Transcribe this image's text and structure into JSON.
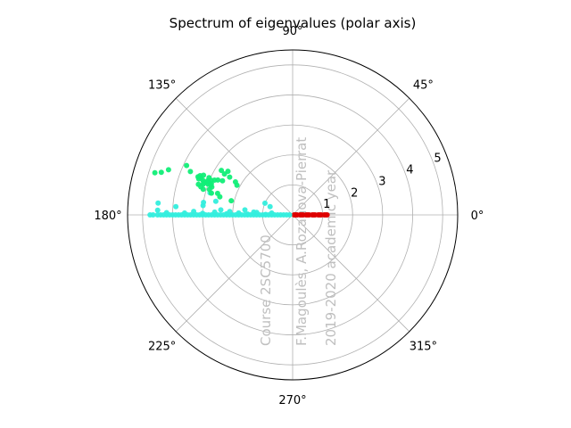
{
  "chart_data": {
    "type": "scatter",
    "projection": "polar",
    "title": "Spectrum of eigenvalues (polar axis)",
    "theta_ticks": [
      "0°",
      "45°",
      "90°",
      "135°",
      "180°",
      "225°",
      "270°",
      "315°"
    ],
    "r_ticks": [
      "1",
      "2",
      "3",
      "4",
      "5"
    ],
    "rlim": [
      0,
      5.5
    ],
    "grid": true,
    "watermark": [
      "Course 2SC5700",
      "F.Magoulès, A.Rozanova-Pierrat",
      "2019-2020 academic year"
    ],
    "series": [
      {
        "color": "#dd0000",
        "marker": "dot",
        "points_theta_deg_r": [
          [
            0,
            0.05
          ],
          [
            0,
            0.15
          ],
          [
            0,
            0.25
          ],
          [
            0,
            0.35
          ],
          [
            0,
            0.45
          ],
          [
            0,
            0.55
          ],
          [
            0,
            0.65
          ],
          [
            0,
            0.75
          ],
          [
            0,
            0.85
          ],
          [
            0,
            0.95
          ],
          [
            0,
            1.05
          ],
          [
            0,
            1.15
          ],
          [
            0,
            0.1
          ],
          [
            0,
            0.3
          ],
          [
            0,
            0.5
          ],
          [
            0,
            0.7
          ],
          [
            0,
            0.9
          ],
          [
            0,
            1.1
          ]
        ]
      },
      {
        "color": "#33eedd",
        "marker": "dot",
        "points_theta_deg_r": [
          [
            180,
            0.1
          ],
          [
            180,
            0.2
          ],
          [
            180,
            0.3
          ],
          [
            180,
            0.4
          ],
          [
            180,
            0.5
          ],
          [
            180,
            0.6
          ],
          [
            180,
            0.7
          ],
          [
            180,
            0.8
          ],
          [
            180,
            0.9
          ],
          [
            180,
            1.0
          ],
          [
            180,
            1.1
          ],
          [
            180,
            1.2
          ],
          [
            180,
            1.3
          ],
          [
            180,
            1.4
          ],
          [
            180,
            1.5
          ],
          [
            180,
            1.6
          ],
          [
            180,
            1.7
          ],
          [
            180,
            1.8
          ],
          [
            180,
            1.9
          ],
          [
            180,
            2.0
          ],
          [
            180,
            2.1
          ],
          [
            180,
            2.2
          ],
          [
            180,
            2.3
          ],
          [
            180,
            2.4
          ],
          [
            180,
            2.5
          ],
          [
            180,
            2.6
          ],
          [
            180,
            2.7
          ],
          [
            180,
            2.8
          ],
          [
            180,
            2.9
          ],
          [
            180,
            3.0
          ],
          [
            180,
            3.1
          ],
          [
            180,
            3.2
          ],
          [
            180,
            3.3
          ],
          [
            180,
            3.4
          ],
          [
            180,
            3.5
          ],
          [
            180,
            3.6
          ],
          [
            180,
            3.7
          ],
          [
            180,
            3.8
          ],
          [
            180,
            3.9
          ],
          [
            180,
            4.0
          ],
          [
            180,
            4.1
          ],
          [
            180,
            4.2
          ],
          [
            180,
            4.3
          ],
          [
            180,
            4.4
          ],
          [
            180,
            4.5
          ],
          [
            180,
            4.65
          ],
          [
            180,
            4.75
          ],
          [
            179,
            0.9
          ],
          [
            179,
            1.5
          ],
          [
            179,
            2.2
          ],
          [
            179,
            3.0
          ],
          [
            179,
            3.6
          ],
          [
            179,
            4.2
          ],
          [
            178,
            2.6
          ],
          [
            178,
            3.3
          ],
          [
            178,
            4.5
          ],
          [
            177,
            2.1
          ],
          [
            176,
            1.3
          ],
          [
            176,
            1.2
          ],
          [
            176,
            2.4
          ],
          [
            175,
            0.7
          ],
          [
            174,
            3.0
          ],
          [
            172,
            3.0
          ],
          [
            170,
            2.6
          ],
          [
            165,
            2.85
          ],
          [
            160,
            0.8
          ],
          [
            157,
            1.0
          ],
          [
            175,
            4.5
          ],
          [
            178,
            1.8
          ],
          [
            176,
            3.9
          ],
          [
            174,
            1.6
          ]
        ]
      },
      {
        "color": "#11ee77",
        "marker": "dot",
        "points_theta_deg_r": [
          [
            152,
            2.1
          ],
          [
            150,
            2.2
          ],
          [
            149,
            2.45
          ],
          [
            146,
            2.6
          ],
          [
            149,
            2.65
          ],
          [
            148,
            2.8
          ],
          [
            154,
            2.6
          ],
          [
            155,
            2.75
          ],
          [
            156,
            2.85
          ],
          [
            157,
            2.95
          ],
          [
            159,
            3.05
          ],
          [
            160,
            2.9
          ],
          [
            161,
            2.85
          ],
          [
            160,
            3.0
          ],
          [
            161,
            3.15
          ],
          [
            159,
            3.2
          ],
          [
            158,
            3.3
          ],
          [
            158,
            3.4
          ],
          [
            162,
            3.3
          ],
          [
            163,
            3.2
          ],
          [
            164,
            3.1
          ],
          [
            160,
            3.15
          ],
          [
            159,
            3.35
          ],
          [
            157,
            3.35
          ],
          [
            156,
            3.25
          ],
          [
            160,
            4.4
          ],
          [
            162,
            4.6
          ],
          [
            163,
            4.8
          ],
          [
            157,
            3.7
          ],
          [
            155,
            3.9
          ],
          [
            164,
            2.6
          ],
          [
            165,
            2.8
          ],
          [
            166,
            2.5
          ],
          [
            163,
            2.9
          ],
          [
            167,
            2.1
          ],
          [
            159,
            2.9
          ],
          [
            158,
            3.05
          ],
          [
            156,
            3.05
          ]
        ]
      }
    ]
  }
}
